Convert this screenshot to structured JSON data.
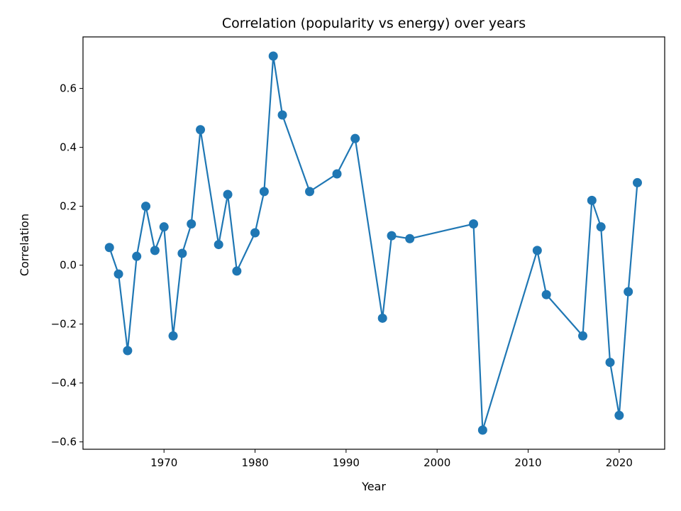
{
  "chart_data": {
    "type": "line",
    "title": "Correlation (popularity vs energy) over years",
    "xlabel": "Year",
    "ylabel": "Correlation",
    "xlim": [
      1961.1,
      2025.0
    ],
    "ylim": [
      -0.625,
      0.775
    ],
    "xticks": [
      1970,
      1980,
      1990,
      2000,
      2010,
      2020
    ],
    "yticks": [
      -0.6,
      -0.4,
      -0.2,
      0.0,
      0.2,
      0.4,
      0.6
    ],
    "ytick_labels": [
      "−0.6",
      "−0.4",
      "−0.2",
      "0.0",
      "0.2",
      "0.4",
      "0.6"
    ],
    "grid": false,
    "color": "#1f77b4",
    "marker": "circle",
    "series": [
      {
        "x": [
          1964,
          1965,
          1966,
          1967,
          1968,
          1969,
          1970,
          1971,
          1972,
          1973,
          1974,
          1976,
          1977,
          1978,
          1980,
          1981,
          1982,
          1983,
          1986,
          1989,
          1991,
          1994,
          1995,
          1997,
          2004,
          2005,
          2011,
          2012,
          2016,
          2017,
          2018,
          2019,
          2020,
          2021,
          2022
        ],
        "y": [
          0.06,
          -0.03,
          -0.29,
          0.03,
          0.2,
          0.05,
          0.13,
          -0.24,
          0.04,
          0.14,
          0.46,
          0.07,
          0.24,
          -0.02,
          0.11,
          0.25,
          0.71,
          0.51,
          0.25,
          0.31,
          0.43,
          -0.18,
          0.1,
          0.09,
          0.14,
          -0.56,
          0.05,
          -0.1,
          -0.24,
          0.22,
          0.13,
          -0.33,
          -0.51,
          -0.09,
          0.28
        ]
      }
    ]
  }
}
